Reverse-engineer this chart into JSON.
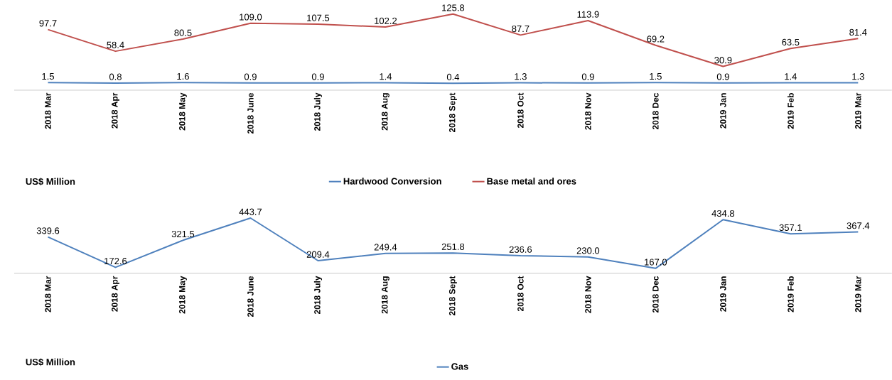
{
  "chart_data": [
    {
      "type": "line",
      "categories": [
        "2018 Mar",
        "2018 Apr",
        "2018 May",
        "2018 June",
        "2018 July",
        "2018 Aug",
        "2018 Sept",
        "2018 Oct",
        "2018 Nov",
        "2018 Dec",
        "2019 Jan",
        "2019 Feb",
        "2019 Mar"
      ],
      "series": [
        {
          "name": "Hardwood Conversion",
          "color": "#4f81bd",
          "values": [
            1.5,
            0.8,
            1.6,
            0.9,
            0.9,
            1.4,
            0.4,
            1.3,
            0.9,
            1.5,
            0.9,
            1.4,
            1.3
          ],
          "value_labels": [
            "1.5",
            "0.8",
            "1.6",
            "0.9",
            "0.9",
            "1.4",
            "0.4",
            "1.3",
            "0.9",
            "1.5",
            "0.9",
            "1.4",
            "1.3"
          ]
        },
        {
          "name": "Base metal and ores",
          "color": "#c0504d",
          "values": [
            97.7,
            58.4,
            80.5,
            109.0,
            107.5,
            102.2,
            125.8,
            87.7,
            113.9,
            69.2,
            30.9,
            63.5,
            81.4
          ],
          "value_labels": [
            "97.7",
            "58.4",
            "80.5",
            "109.0",
            "107.5",
            "102.2",
            "125.8",
            "87.7",
            "113.9",
            "69.2",
            "30.9",
            "63.5",
            "81.4"
          ]
        }
      ],
      "tick_labels": "x",
      "legend": "bottom",
      "marker": "none",
      "line_style": "solid",
      "annotations": [
        "US$ Million"
      ]
    },
    {
      "type": "line",
      "categories": [
        "2018 Mar",
        "2018 Apr",
        "2018 May",
        "2018 June",
        "2018 July",
        "2018 Aug",
        "2018 Sept",
        "2018 Oct",
        "2018 Nov",
        "2018 Dec",
        "2019 Jan",
        "2019 Feb",
        "2019 Mar"
      ],
      "series": [
        {
          "name": "Gas",
          "color": "#4f81bd",
          "values": [
            339.6,
            172.6,
            321.5,
            443.7,
            209.4,
            249.4,
            251.8,
            236.6,
            230.0,
            167.0,
            434.8,
            357.1,
            367.4
          ],
          "value_labels": [
            "339.6",
            "172.6",
            "321.5",
            "443.7",
            "209.4",
            "249.4",
            "251.8",
            "236.6",
            "230.0",
            "167.0",
            "434.8",
            "357.1",
            "367.4"
          ]
        }
      ],
      "tick_labels": "x",
      "legend": "bottom",
      "marker": "none",
      "line_style": "solid",
      "annotations": [
        "US$ Million"
      ]
    }
  ]
}
